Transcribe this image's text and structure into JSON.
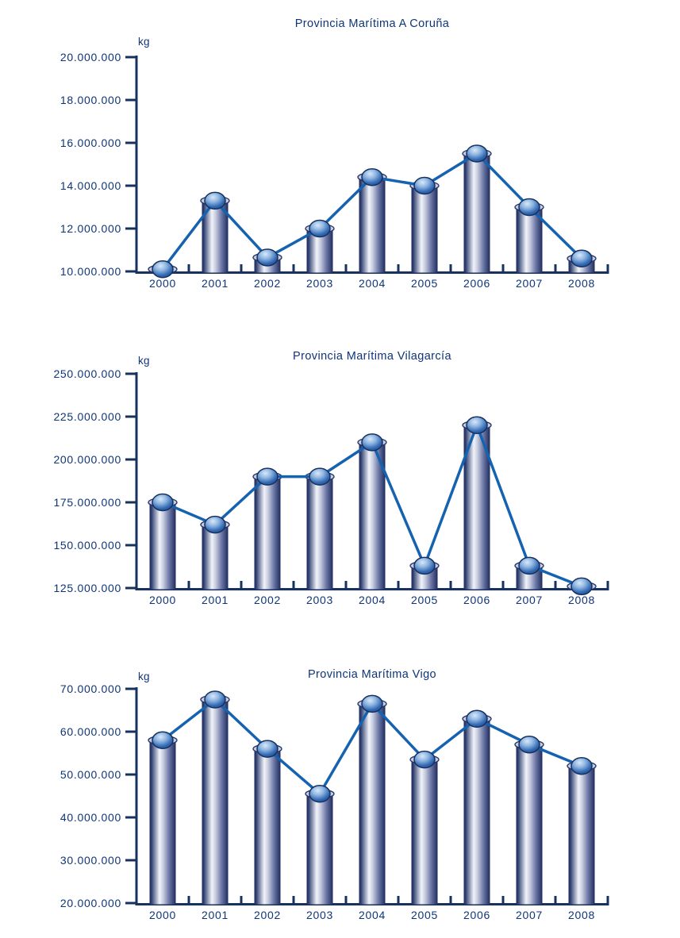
{
  "page": {
    "background": "#FFFFFF",
    "unit": "kg"
  },
  "colors": {
    "text": "#0E3578",
    "axis": "#17325F",
    "line": "#1563B0",
    "bar_edge": "#1E2C5D",
    "bar_mid": "#2E3E70",
    "bar_highlight": "#F2F4FA",
    "bar_shade": "#6B77A5",
    "rim_fill": "#C9CDE0",
    "rim_stroke": "#25356A",
    "sphere_light": "#D9E8F8",
    "sphere_mid": "#8FB6E2",
    "sphere_deep": "#3168B1",
    "sphere_dark": "#1D4F97",
    "sphere_outline": "#16305E"
  },
  "chart_data": [
    {
      "type": "bar",
      "overlay": "line-with-markers",
      "title": "Provincia Marítima A Coruña",
      "ylabel": "kg",
      "xlabel": "",
      "grid": false,
      "legend": false,
      "categories": [
        "2000",
        "2001",
        "2002",
        "2003",
        "2004",
        "2005",
        "2006",
        "2007",
        "2008"
      ],
      "values": [
        10100000,
        13300000,
        10650000,
        12000000,
        14400000,
        14000000,
        15500000,
        13000000,
        10600000
      ],
      "ylim": [
        10000000,
        20000000
      ],
      "ytick_step": 2000000,
      "ytick_labels": [
        "20.000.000",
        "18.000.000",
        "16.000.000",
        "14.000.000",
        "12.000.000",
        "10.000.000"
      ]
    },
    {
      "type": "bar",
      "overlay": "line-with-markers",
      "title": "Provincia Marítima Vilagarcía",
      "ylabel": "kg",
      "xlabel": "",
      "grid": false,
      "legend": false,
      "categories": [
        "2000",
        "2001",
        "2002",
        "2003",
        "2004",
        "2005",
        "2006",
        "2007",
        "2008"
      ],
      "values": [
        175000000,
        162000000,
        190000000,
        190000000,
        210000000,
        138000000,
        220000000,
        138000000,
        126000000
      ],
      "ylim": [
        125000000,
        250000000
      ],
      "ytick_step": 25000000,
      "ytick_labels": [
        "250.000.000",
        "225.000.000",
        "200.000.000",
        "175.000.000",
        "150.000.000",
        "125.000.000"
      ]
    },
    {
      "type": "bar",
      "overlay": "line-with-markers",
      "title": "Provincia Marítima Vigo",
      "ylabel": "kg",
      "xlabel": "",
      "grid": false,
      "legend": false,
      "categories": [
        "2000",
        "2001",
        "2002",
        "2003",
        "2004",
        "2005",
        "2006",
        "2007",
        "2008"
      ],
      "values": [
        58000000,
        67500000,
        56000000,
        45500000,
        66500000,
        53500000,
        63000000,
        57000000,
        52000000
      ],
      "ylim": [
        20000000,
        70000000
      ],
      "ytick_step": 10000000,
      "ytick_labels": [
        "70.000.000",
        "60.000.000",
        "50.000.000",
        "40.000.000",
        "30.000.000",
        "20.000.000"
      ]
    }
  ]
}
